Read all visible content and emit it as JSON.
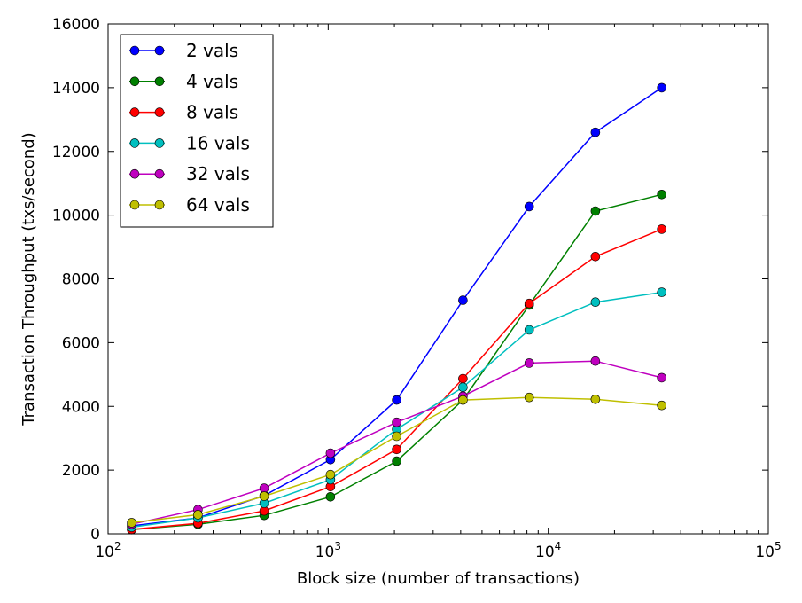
{
  "chart_data": {
    "type": "line",
    "title": "",
    "xlabel": "Block size (number of transactions)",
    "ylabel": "Transaction Throughput (txs/second)",
    "x_scale": "log",
    "xlim": [
      100,
      100000
    ],
    "ylim": [
      0,
      16000
    ],
    "grid": false,
    "legend_position": "top-left",
    "x_ticks": [
      {
        "value": 100,
        "base": "10",
        "exp": "2"
      },
      {
        "value": 1000,
        "base": "10",
        "exp": "3"
      },
      {
        "value": 10000,
        "base": "10",
        "exp": "4"
      },
      {
        "value": 100000,
        "base": "10",
        "exp": "5"
      }
    ],
    "y_ticks": [
      0,
      2000,
      4000,
      6000,
      8000,
      10000,
      12000,
      14000,
      16000
    ],
    "y_tick_labels": [
      "0",
      "2000",
      "4000",
      "6000",
      "8000",
      "10000",
      "12000",
      "14000",
      "16000"
    ],
    "x": [
      128,
      256,
      512,
      1024,
      2048,
      4096,
      8192,
      16384,
      32768
    ],
    "series": [
      {
        "name": "2 vals",
        "color": "#0000ff",
        "values": [
          250,
          500,
          1200,
          2330,
          4200,
          7330,
          10270,
          12600,
          14000
        ]
      },
      {
        "name": "4 vals",
        "color": "#008000",
        "values": [
          130,
          300,
          580,
          1160,
          2280,
          4200,
          7180,
          10130,
          10650
        ]
      },
      {
        "name": "8 vals",
        "color": "#ff0000",
        "values": [
          140,
          330,
          720,
          1480,
          2650,
          4870,
          7230,
          8700,
          9560
        ]
      },
      {
        "name": "16 vals",
        "color": "#00bfbf",
        "values": [
          210,
          500,
          960,
          1700,
          3280,
          4600,
          6400,
          7270,
          7580
        ]
      },
      {
        "name": "32 vals",
        "color": "#bf00bf",
        "values": [
          300,
          760,
          1430,
          2530,
          3500,
          4320,
          5360,
          5420,
          4900
        ]
      },
      {
        "name": "64 vals",
        "color": "#bfbf00",
        "values": [
          350,
          600,
          1180,
          1860,
          3060,
          4200,
          4280,
          4220,
          4030
        ]
      }
    ]
  }
}
